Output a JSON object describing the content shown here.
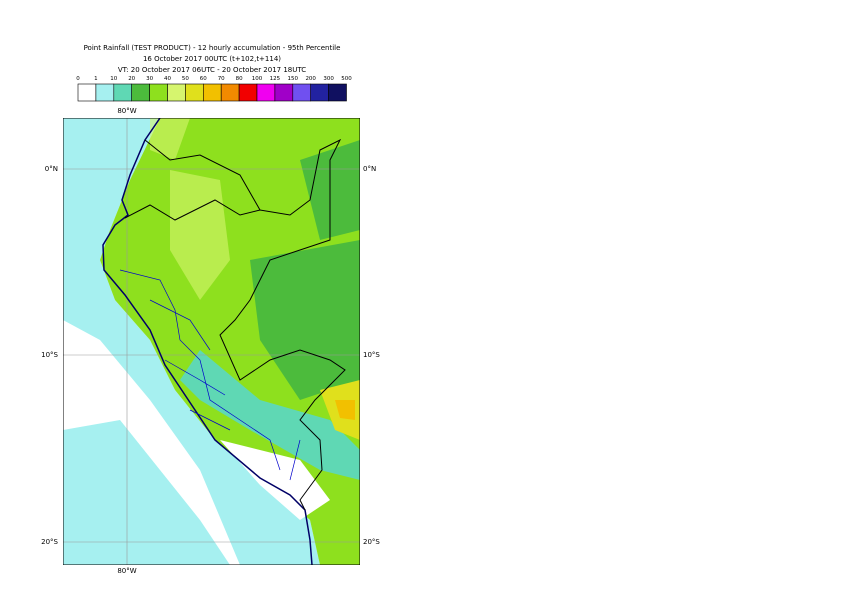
{
  "header": {
    "title": "Point Rainfall (TEST PRODUCT) - 12 hourly accumulation - 95th Percentile",
    "base_time": "16 October 2017 00UTC (t+102,t+114)",
    "valid_time": "VT: 20 October 2017 06UTC - 20 October 2017 18UTC"
  },
  "legend": {
    "labels": [
      0,
      1,
      10,
      20,
      30,
      40,
      50,
      60,
      70,
      80,
      100,
      125,
      150,
      200,
      300,
      500
    ],
    "colors": [
      "#ffffff",
      "#a6f0f0",
      "#5fd8b4",
      "#4cbb3c",
      "#8ee01e",
      "#d6f56e",
      "#e0e01c",
      "#f2c000",
      "#f28a00",
      "#f20000",
      "#f000f0",
      "#a000c8",
      "#7050f0",
      "#2222a0",
      "#101060"
    ]
  },
  "map": {
    "lon_labels": [
      "80°W",
      "80°W"
    ],
    "lat_labels": [
      "0°N",
      "10°S",
      "20°S"
    ],
    "lat_labels_right": [
      "0°N",
      "10°S",
      "20°S"
    ]
  }
}
